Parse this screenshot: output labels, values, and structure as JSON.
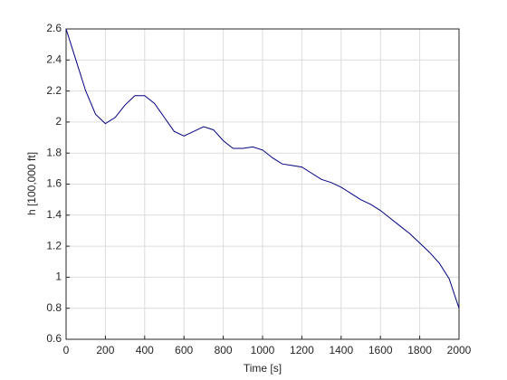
{
  "chart_data": {
    "type": "line",
    "xlabel": "Time [s]",
    "ylabel": "h [100,000 ft]",
    "x": [
      0,
      50,
      100,
      150,
      200,
      250,
      300,
      350,
      400,
      450,
      500,
      550,
      600,
      650,
      700,
      750,
      800,
      850,
      900,
      950,
      1000,
      1050,
      1100,
      1150,
      1200,
      1250,
      1300,
      1350,
      1400,
      1450,
      1500,
      1550,
      1600,
      1650,
      1700,
      1750,
      1800,
      1850,
      1900,
      1950,
      2000
    ],
    "series": [
      {
        "color": "#000080",
        "values": [
          2.6,
          2.4,
          2.2,
          2.05,
          1.99,
          2.03,
          2.11,
          2.17,
          2.17,
          2.12,
          2.03,
          1.94,
          1.91,
          1.94,
          1.97,
          1.95,
          1.88,
          1.83,
          1.83,
          1.84,
          1.82,
          1.77,
          1.73,
          1.72,
          1.71,
          1.67,
          1.63,
          1.61,
          1.58,
          1.54,
          1.5,
          1.47,
          1.43,
          1.38,
          1.33,
          1.28,
          1.22,
          1.16,
          1.09,
          0.99,
          0.8
        ]
      }
    ],
    "xlim": [
      0,
      2000
    ],
    "xticks": [
      0,
      200,
      400,
      600,
      800,
      1000,
      1200,
      1400,
      1600,
      1800,
      2000
    ],
    "ylim": [
      0.6,
      2.6
    ],
    "yticks": [
      0.6,
      0.8,
      1,
      1.2,
      1.4,
      1.6,
      1.8,
      2,
      2.2,
      2.4,
      2.6
    ],
    "grid": true
  }
}
